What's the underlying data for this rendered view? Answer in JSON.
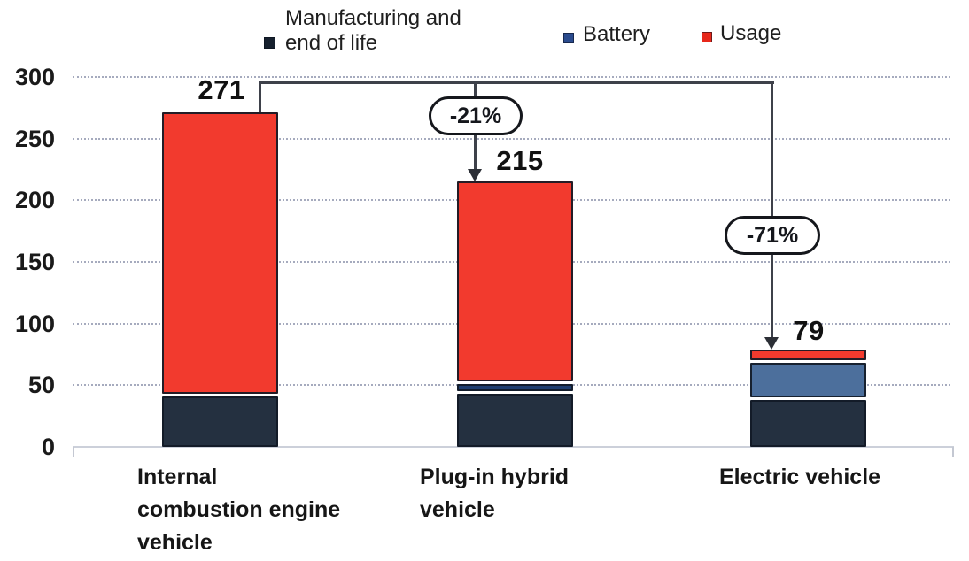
{
  "chart_data": {
    "type": "bar",
    "stacked": true,
    "ylim": [
      0,
      300
    ],
    "yticks": [
      "0",
      "50",
      "100",
      "150",
      "200",
      "250",
      "300"
    ],
    "grid": "horizontal-dotted",
    "legend_position": "top",
    "categories": [
      "Internal combustion engine vehicle",
      "Plug-in hybrid vehicle",
      "Electric vehicle"
    ],
    "series": [
      {
        "name": "Manufacturing and end of life",
        "color": "#243040",
        "values": [
          43,
          45,
          40
        ]
      },
      {
        "name": "Battery",
        "color": "#2a4b8e",
        "values": [
          0,
          8,
          30
        ]
      },
      {
        "name": "Usage",
        "color": "#f23a2e",
        "values": [
          228,
          162,
          9
        ]
      }
    ],
    "totals": [
      271,
      215,
      79
    ],
    "bars": [
      {
        "label_lines": [
          "Internal",
          "combustion engine",
          "vehicle"
        ],
        "total": "271",
        "segments": [
          {
            "name": "Manufacturing and end of life",
            "value": 43,
            "color": "#243040"
          },
          {
            "name": "Usage",
            "value": 228,
            "color": "#f23a2e"
          }
        ]
      },
      {
        "label_lines": [
          "Plug-in hybrid",
          "vehicle"
        ],
        "total": "215",
        "segments": [
          {
            "name": "Manufacturing and end of life",
            "value": 45,
            "color": "#243040"
          },
          {
            "name": "Battery",
            "value": 8,
            "color": "#1f3e6f"
          },
          {
            "name": "Usage",
            "value": 162,
            "color": "#f23a2e"
          }
        ]
      },
      {
        "label_lines": [
          "Electric vehicle"
        ],
        "total": "79",
        "segments": [
          {
            "name": "Manufacturing and end of life",
            "value": 40,
            "color": "#243040"
          },
          {
            "name": "Battery",
            "value": 30,
            "color": "#4c6f9c"
          },
          {
            "name": "Usage",
            "value": 9,
            "color": "#f23a2e"
          }
        ]
      }
    ],
    "annotations": [
      {
        "label": "-21%",
        "from": "Internal combustion engine vehicle",
        "to": "Plug-in hybrid vehicle"
      },
      {
        "label": "-71%",
        "from": "Internal combustion engine vehicle",
        "to": "Electric vehicle"
      }
    ]
  },
  "legend": {
    "items": [
      {
        "label": "Manufacturing and end of life",
        "label_lines": [
          "Manufacturing and",
          "end of life"
        ],
        "color": "#16202e"
      },
      {
        "label": "Battery",
        "label_lines": [
          "Battery"
        ],
        "color": "#2a4b8e"
      },
      {
        "label": "Usage",
        "label_lines": [
          "Usage"
        ],
        "color": "#e7281b"
      }
    ]
  }
}
